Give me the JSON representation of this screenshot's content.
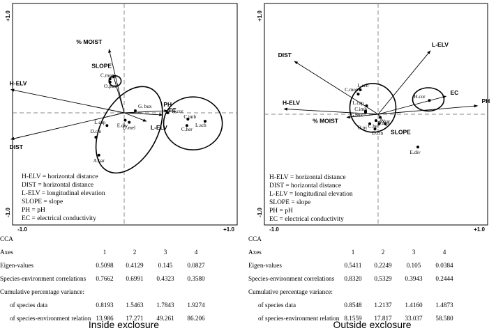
{
  "chart_data": [
    {
      "type": "scatter",
      "subtype": "cca-biplot",
      "ticks": {
        "x_min": "-1.0",
        "x_max": "+1.0",
        "y_min": "-1.0",
        "y_max": "+1.0"
      },
      "xlim": [
        -1.0,
        1.0
      ],
      "ylim": [
        -1.0,
        1.0
      ],
      "grid": false,
      "reference_lines": "dashed axes at 0",
      "vectors": [
        {
          "label": "% MOIST",
          "x": -0.15,
          "y": 0.6
        },
        {
          "label": "SLOPE",
          "x": -0.11,
          "y": 0.36
        },
        {
          "label": "H-ELV",
          "x": -1.12,
          "y": 0.22
        },
        {
          "label": "DIST",
          "x": -1.12,
          "y": -0.25
        },
        {
          "label": "PH",
          "x": 0.43,
          "y": 0.02
        },
        {
          "label": "EC",
          "x": 0.38,
          "y": -0.02
        },
        {
          "label": "L-ELV",
          "x": 0.22,
          "y": -0.08
        }
      ],
      "species": [
        {
          "label": "C.mop",
          "x": -0.14,
          "y": 0.32
        },
        {
          "label": "O.pan",
          "x": -0.14,
          "y": 0.29
        },
        {
          "label": "G. bux",
          "x": 0.11,
          "y": 0.02
        },
        {
          "label": "E.div",
          "x": 0.01,
          "y": -0.07
        },
        {
          "label": "D.mel",
          "x": 0.05,
          "y": -0.09
        },
        {
          "label": "L.cap",
          "x": -0.17,
          "y": -0.12
        },
        {
          "label": "D.cin",
          "x": -0.28,
          "y": -0.23
        },
        {
          "label": "A.har",
          "x": -0.25,
          "y": -0.4
        },
        {
          "label": "H.cor",
          "x": 0.43,
          "y": 0.0
        },
        {
          "label": "C.imb",
          "x": 0.63,
          "y": -0.06
        },
        {
          "label": "C.her",
          "x": 0.62,
          "y": -0.12
        },
        {
          "label": "L.sch",
          "x": 0.8,
          "y": -0.08
        }
      ],
      "ellipses": [
        {
          "cx": -0.09,
          "cy": 0.3,
          "rx": 0.06,
          "ry": 0.05
        },
        {
          "cx": 0.05,
          "cy": -0.16,
          "rx": 0.28,
          "ry": 0.44,
          "rotation": 28
        },
        {
          "cx": 0.68,
          "cy": -0.1,
          "rx": 0.29,
          "ry": 0.25
        }
      ],
      "legend": [
        "H-ELV = horizontal distance",
        "DIST = horizontal distance",
        "L-ELV = longitudinal elevation",
        "SLOPE = slope",
        "PH = pH",
        "EC = electrical conductivity"
      ],
      "table": {
        "method": "CCA",
        "header_label": "Axes",
        "axes": [
          "1",
          "2",
          "3",
          "4"
        ],
        "rows": [
          {
            "label": "Eigen-values",
            "values": [
              "0.5098",
              "0.4129",
              "0.145",
              "0.0827"
            ]
          },
          {
            "label": "Species-environment correlations",
            "values": [
              "0.7662",
              "0.6991",
              "0.4323",
              "0.3580"
            ]
          },
          {
            "label": "Cumulative percentage variance:",
            "values": []
          },
          {
            "label": "of species data",
            "values": [
              "0.8193",
              "1.5463",
              "1.7843",
              "1.9274"
            ]
          },
          {
            "label": "of species-environment relation",
            "values": [
              "13.986",
              "17.271",
              "49.261",
              "86.206"
            ]
          }
        ]
      },
      "caption": "Inside exclosure"
    },
    {
      "type": "scatter",
      "subtype": "cca-biplot",
      "ticks": {
        "x_min": "-1.0",
        "x_max": "+1.0",
        "y_min": "-1.0",
        "y_max": "+1.0"
      },
      "xlim": [
        -1.0,
        1.0
      ],
      "ylim": [
        -1.0,
        1.0
      ],
      "grid": false,
      "reference_lines": "dashed axes at 0",
      "vectors": [
        {
          "label": "DIST",
          "x": -0.8,
          "y": 0.5
        },
        {
          "label": "L-ELV",
          "x": 0.5,
          "y": 0.6
        },
        {
          "label": "H-ELV",
          "x": -0.9,
          "y": 0.05
        },
        {
          "label": "% MOIST",
          "x": -0.3,
          "y": -0.03
        },
        {
          "label": "EC",
          "x": 0.65,
          "y": 0.17
        },
        {
          "label": "PH",
          "x": 0.95,
          "y": 0.08
        },
        {
          "label": "SLOPE",
          "x": 0.08,
          "y": -0.11
        }
      ],
      "species": [
        {
          "label": "L.sch",
          "x": -0.17,
          "y": 0.23
        },
        {
          "label": "C.mop",
          "x": -0.19,
          "y": 0.19
        },
        {
          "label": "L.cap",
          "x": -0.11,
          "y": 0.08
        },
        {
          "label": "C.imb",
          "x": -0.12,
          "y": 0.02
        },
        {
          "label": "G.bux",
          "x": -0.12,
          "y": 0.03
        },
        {
          "label": "A.har",
          "x": 0.02,
          "y": -0.03
        },
        {
          "label": "D.mel",
          "x": -0.02,
          "y": -0.06
        },
        {
          "label": "O.tri",
          "x": -0.08,
          "y": -0.09
        },
        {
          "label": "C.her",
          "x": 0.01,
          "y": -0.09
        },
        {
          "label": "D.cin",
          "x": -0.03,
          "y": -0.14
        },
        {
          "label": "H.cor",
          "x": 0.49,
          "y": 0.13
        },
        {
          "label": "E.div",
          "x": 0.38,
          "y": -0.31
        }
      ],
      "ellipses": [
        {
          "cx": -0.05,
          "cy": 0.06,
          "rx": 0.22,
          "ry": 0.23
        },
        {
          "cx": 0.48,
          "cy": 0.14,
          "rx": 0.15,
          "ry": 0.11
        }
      ],
      "legend": [
        "H-ELV = horizontal distance",
        "DIST = horizontal distance",
        "L-ELV = longitudinal elevation",
        "SLOPE = slope",
        "PH = pH",
        "EC = electrical conductivity"
      ],
      "table": {
        "method": "CCA",
        "header_label": "Axes",
        "axes": [
          "1",
          "2",
          "3",
          "4"
        ],
        "rows": [
          {
            "label": "Eigen-values",
            "values": [
              "0.5411",
              "0.2249",
              "0.105",
              "0.0384"
            ]
          },
          {
            "label": "Species-environment correlations",
            "values": [
              "0.8320",
              "0.5329",
              "0.3943",
              "0.2444"
            ]
          },
          {
            "label": "Cumulative percentage variance:",
            "values": []
          },
          {
            "label": "of species data",
            "values": [
              "0.8548",
              "1.2137",
              "1.4160",
              "1.4873"
            ]
          },
          {
            "label": "of species-environment relation",
            "values": [
              "8.1559",
              "17.817",
              "33.037",
              "58.580"
            ]
          }
        ]
      },
      "caption": "Outside exclosure"
    }
  ]
}
